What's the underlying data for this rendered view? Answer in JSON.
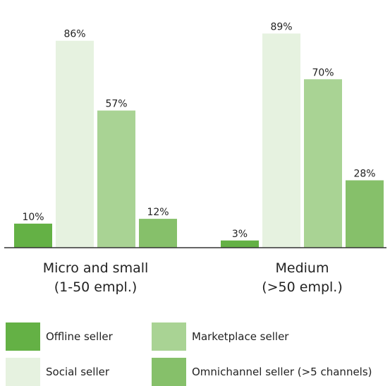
{
  "chart_data": {
    "type": "bar",
    "title": "",
    "xlabel": "",
    "ylabel": "",
    "ylim": [
      0,
      100
    ],
    "value_suffix": "%",
    "grid": false,
    "legend_position": "bottom",
    "categories": [
      [
        "Micro and small",
        "(1-50 empl.)"
      ],
      [
        "Medium",
        "(>50 empl.)"
      ]
    ],
    "series": [
      {
        "name": "Offline seller",
        "color": "#64b145",
        "values": [
          10,
          3
        ]
      },
      {
        "name": "Social seller",
        "color": "#e6f2e0",
        "values": [
          86,
          89
        ]
      },
      {
        "name": "Marketplace seller",
        "color": "#a9d394",
        "values": [
          57,
          70
        ]
      },
      {
        "name": "Omnichannel seller (>5 channels)",
        "color": "#86c06a",
        "values": [
          12,
          28
        ]
      }
    ]
  }
}
